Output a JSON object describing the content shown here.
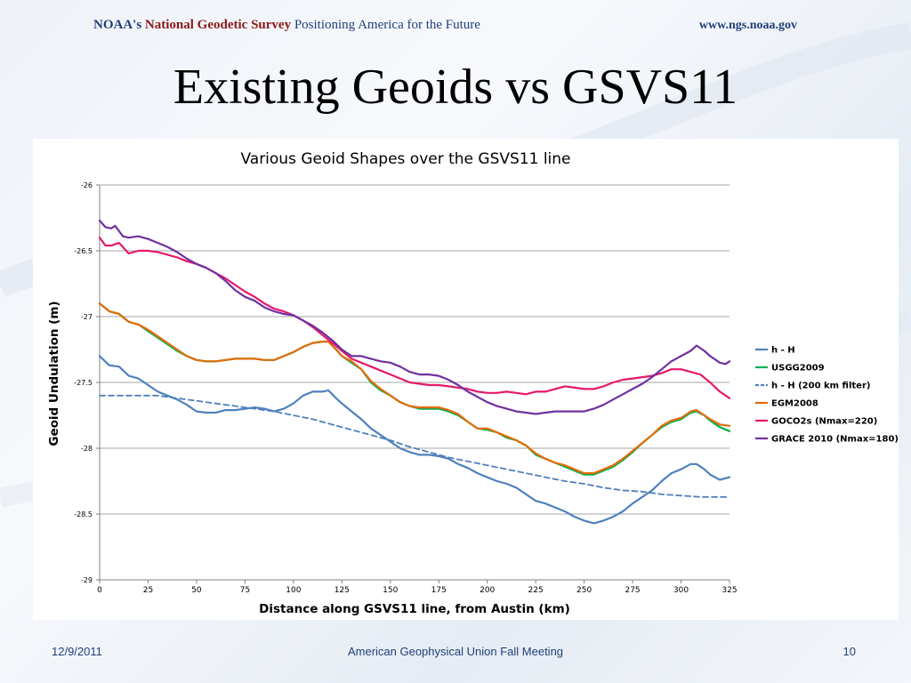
{
  "header": {
    "org_noaa": "NOAA's",
    "org_name": "National Geodetic Survey",
    "org_tagline": "Positioning America for the Future",
    "url": "www.ngs.noaa.gov"
  },
  "slide": {
    "title": "Existing Geoids vs GSVS11"
  },
  "footer": {
    "date": "12/9/2011",
    "center": "American Geophysical Union Fall Meeting",
    "page": "10"
  },
  "colors": {
    "title_text": "#1f3f7a",
    "national_text": "#8b1a1a"
  },
  "chart_data": {
    "type": "line",
    "title": "Various Geoid Shapes over the GSVS11 line",
    "xlabel": "Distance along GSVS11  line, from Austin (km)",
    "ylabel": "Geoid Undulation (m)",
    "xlim": [
      0,
      325
    ],
    "ylim": [
      -29,
      -26
    ],
    "xticks": [
      0,
      25,
      50,
      75,
      100,
      125,
      150,
      175,
      200,
      225,
      250,
      275,
      300,
      325
    ],
    "yticks": [
      -26,
      -26.5,
      -27,
      -27.5,
      -28,
      -28.5,
      -29
    ],
    "grid": "horizontal",
    "legend_position": "right",
    "series": [
      {
        "name": "h - H",
        "color": "#4f81bd",
        "dash": false,
        "x": [
          0,
          5,
          10,
          15,
          20,
          25,
          30,
          35,
          40,
          45,
          50,
          55,
          60,
          65,
          70,
          75,
          80,
          85,
          90,
          95,
          100,
          105,
          110,
          115,
          118,
          122,
          125,
          130,
          135,
          140,
          145,
          150,
          155,
          160,
          165,
          170,
          175,
          180,
          185,
          190,
          195,
          200,
          205,
          210,
          215,
          220,
          225,
          230,
          235,
          240,
          245,
          250,
          255,
          260,
          265,
          270,
          275,
          280,
          285,
          290,
          295,
          300,
          305,
          308,
          312,
          315,
          320,
          325
        ],
        "y": [
          -27.3,
          -27.37,
          -27.38,
          -27.45,
          -27.47,
          -27.52,
          -27.57,
          -27.6,
          -27.63,
          -27.67,
          -27.72,
          -27.73,
          -27.73,
          -27.71,
          -27.71,
          -27.7,
          -27.69,
          -27.7,
          -27.72,
          -27.7,
          -27.66,
          -27.6,
          -27.57,
          -27.57,
          -27.56,
          -27.62,
          -27.66,
          -27.72,
          -27.78,
          -27.85,
          -27.9,
          -27.95,
          -28.0,
          -28.03,
          -28.05,
          -28.05,
          -28.06,
          -28.08,
          -28.12,
          -28.15,
          -28.19,
          -28.22,
          -28.25,
          -28.27,
          -28.3,
          -28.35,
          -28.4,
          -28.42,
          -28.45,
          -28.48,
          -28.52,
          -28.55,
          -28.57,
          -28.55,
          -28.52,
          -28.48,
          -28.42,
          -28.37,
          -28.32,
          -28.25,
          -28.19,
          -28.16,
          -28.12,
          -28.12,
          -28.16,
          -28.2,
          -28.24,
          -28.22
        ]
      },
      {
        "name": "USGG2009",
        "color": "#00b050",
        "dash": false,
        "x": [
          0,
          5,
          10,
          15,
          20,
          25,
          30,
          35,
          40,
          45,
          50,
          55,
          60,
          65,
          70,
          75,
          80,
          85,
          90,
          95,
          100,
          105,
          110,
          115,
          118,
          122,
          125,
          130,
          135,
          140,
          145,
          150,
          155,
          160,
          165,
          170,
          175,
          180,
          185,
          190,
          195,
          200,
          205,
          210,
          215,
          220,
          225,
          230,
          235,
          240,
          245,
          250,
          255,
          260,
          265,
          270,
          275,
          280,
          285,
          290,
          295,
          300,
          305,
          308,
          312,
          315,
          320,
          325
        ],
        "y": [
          -26.9,
          -26.96,
          -26.98,
          -27.04,
          -27.06,
          -27.11,
          -27.16,
          -27.21,
          -27.26,
          -27.3,
          -27.33,
          -27.34,
          -27.34,
          -27.33,
          -27.32,
          -27.32,
          -27.32,
          -27.33,
          -27.33,
          -27.3,
          -27.27,
          -27.23,
          -27.2,
          -27.19,
          -27.19,
          -27.25,
          -27.3,
          -27.35,
          -27.4,
          -27.5,
          -27.56,
          -27.6,
          -27.65,
          -27.68,
          -27.7,
          -27.7,
          -27.7,
          -27.72,
          -27.75,
          -27.8,
          -27.85,
          -27.86,
          -27.88,
          -27.92,
          -27.94,
          -27.98,
          -28.05,
          -28.08,
          -28.11,
          -28.14,
          -28.17,
          -28.2,
          -28.2,
          -28.17,
          -28.14,
          -28.09,
          -28.03,
          -27.96,
          -27.9,
          -27.84,
          -27.8,
          -27.78,
          -27.73,
          -27.72,
          -27.75,
          -27.79,
          -27.84,
          -27.87
        ]
      },
      {
        "name": "h - H (200 km filter)",
        "color": "#4f81bd",
        "dash": true,
        "x": [
          0,
          10,
          20,
          30,
          40,
          50,
          60,
          70,
          80,
          90,
          100,
          110,
          120,
          130,
          140,
          150,
          160,
          170,
          180,
          190,
          200,
          210,
          220,
          230,
          240,
          250,
          260,
          270,
          280,
          290,
          300,
          310,
          320,
          325
        ],
        "y": [
          -27.6,
          -27.6,
          -27.6,
          -27.6,
          -27.62,
          -27.64,
          -27.66,
          -27.68,
          -27.7,
          -27.72,
          -27.75,
          -27.78,
          -27.82,
          -27.86,
          -27.9,
          -27.94,
          -27.99,
          -28.03,
          -28.07,
          -28.1,
          -28.13,
          -28.16,
          -28.19,
          -28.22,
          -28.25,
          -28.27,
          -28.3,
          -28.32,
          -28.33,
          -28.35,
          -28.36,
          -28.37,
          -28.37,
          -28.37
        ]
      },
      {
        "name": "EGM2008",
        "color": "#e46c0a",
        "dash": false,
        "x": [
          0,
          5,
          10,
          15,
          20,
          25,
          30,
          35,
          40,
          45,
          50,
          55,
          60,
          65,
          70,
          75,
          80,
          85,
          90,
          95,
          100,
          105,
          110,
          115,
          118,
          122,
          125,
          130,
          135,
          140,
          145,
          150,
          155,
          160,
          165,
          170,
          175,
          180,
          185,
          190,
          195,
          200,
          205,
          210,
          215,
          220,
          225,
          230,
          235,
          240,
          245,
          250,
          255,
          260,
          265,
          270,
          275,
          280,
          285,
          290,
          295,
          300,
          305,
          308,
          312,
          315,
          320,
          325
        ],
        "y": [
          -26.9,
          -26.96,
          -26.98,
          -27.04,
          -27.06,
          -27.1,
          -27.15,
          -27.2,
          -27.25,
          -27.3,
          -27.33,
          -27.34,
          -27.34,
          -27.33,
          -27.32,
          -27.32,
          -27.32,
          -27.33,
          -27.33,
          -27.3,
          -27.27,
          -27.23,
          -27.2,
          -27.19,
          -27.19,
          -27.25,
          -27.3,
          -27.34,
          -27.4,
          -27.49,
          -27.55,
          -27.6,
          -27.65,
          -27.68,
          -27.69,
          -27.69,
          -27.69,
          -27.71,
          -27.74,
          -27.8,
          -27.85,
          -27.85,
          -27.88,
          -27.91,
          -27.94,
          -27.98,
          -28.04,
          -28.08,
          -28.11,
          -28.13,
          -28.16,
          -28.19,
          -28.19,
          -28.16,
          -28.13,
          -28.08,
          -28.02,
          -27.96,
          -27.9,
          -27.83,
          -27.79,
          -27.77,
          -27.72,
          -27.71,
          -27.75,
          -27.78,
          -27.82,
          -27.83
        ]
      },
      {
        "name": "GOCO2s (Nmax=220)",
        "color": "#e6196a",
        "dash": false,
        "x": [
          0,
          3,
          6,
          10,
          15,
          20,
          25,
          30,
          35,
          40,
          45,
          50,
          55,
          60,
          65,
          70,
          75,
          80,
          85,
          90,
          95,
          100,
          105,
          110,
          115,
          120,
          125,
          130,
          135,
          140,
          145,
          150,
          155,
          160,
          165,
          170,
          175,
          180,
          185,
          190,
          195,
          200,
          205,
          210,
          215,
          220,
          225,
          230,
          235,
          240,
          245,
          250,
          255,
          260,
          265,
          270,
          275,
          280,
          285,
          290,
          295,
          300,
          305,
          310,
          315,
          320,
          325
        ],
        "y": [
          -26.4,
          -26.46,
          -26.46,
          -26.44,
          -26.52,
          -26.5,
          -26.5,
          -26.51,
          -26.53,
          -26.55,
          -26.58,
          -26.6,
          -26.63,
          -26.67,
          -26.71,
          -26.76,
          -26.81,
          -26.85,
          -26.9,
          -26.94,
          -26.96,
          -26.99,
          -27.03,
          -27.08,
          -27.14,
          -27.2,
          -27.26,
          -27.32,
          -27.35,
          -27.38,
          -27.41,
          -27.44,
          -27.47,
          -27.5,
          -27.51,
          -27.52,
          -27.52,
          -27.53,
          -27.54,
          -27.55,
          -27.57,
          -27.58,
          -27.58,
          -27.57,
          -27.58,
          -27.59,
          -27.57,
          -27.57,
          -27.55,
          -27.53,
          -27.54,
          -27.55,
          -27.55,
          -27.53,
          -27.5,
          -27.48,
          -27.47,
          -27.46,
          -27.45,
          -27.43,
          -27.4,
          -27.4,
          -27.42,
          -27.44,
          -27.5,
          -27.57,
          -27.62
        ]
      },
      {
        "name": "GRACE 2010 (Nmax=180)",
        "color": "#7030a0",
        "dash": false,
        "x": [
          0,
          3,
          6,
          8,
          12,
          15,
          20,
          25,
          30,
          35,
          40,
          45,
          50,
          55,
          60,
          65,
          70,
          75,
          80,
          85,
          90,
          95,
          100,
          105,
          110,
          115,
          120,
          125,
          130,
          135,
          140,
          145,
          150,
          155,
          160,
          165,
          170,
          175,
          180,
          185,
          190,
          195,
          200,
          205,
          210,
          215,
          220,
          225,
          230,
          235,
          240,
          245,
          250,
          255,
          260,
          265,
          270,
          275,
          280,
          285,
          290,
          295,
          300,
          305,
          308,
          312,
          315,
          320,
          323,
          325
        ],
        "y": [
          -26.27,
          -26.32,
          -26.33,
          -26.31,
          -26.39,
          -26.4,
          -26.39,
          -26.41,
          -26.44,
          -26.47,
          -26.51,
          -26.56,
          -26.6,
          -26.63,
          -26.67,
          -26.73,
          -26.8,
          -26.85,
          -26.88,
          -26.93,
          -26.96,
          -26.98,
          -26.99,
          -27.03,
          -27.07,
          -27.12,
          -27.18,
          -27.25,
          -27.3,
          -27.3,
          -27.32,
          -27.34,
          -27.35,
          -27.38,
          -27.42,
          -27.44,
          -27.44,
          -27.45,
          -27.48,
          -27.52,
          -27.57,
          -27.61,
          -27.65,
          -27.68,
          -27.7,
          -27.72,
          -27.73,
          -27.74,
          -27.73,
          -27.72,
          -27.72,
          -27.72,
          -27.72,
          -27.7,
          -27.67,
          -27.63,
          -27.59,
          -27.55,
          -27.51,
          -27.46,
          -27.4,
          -27.34,
          -27.3,
          -27.26,
          -27.22,
          -27.26,
          -27.3,
          -27.35,
          -27.36,
          -27.34
        ]
      }
    ]
  }
}
